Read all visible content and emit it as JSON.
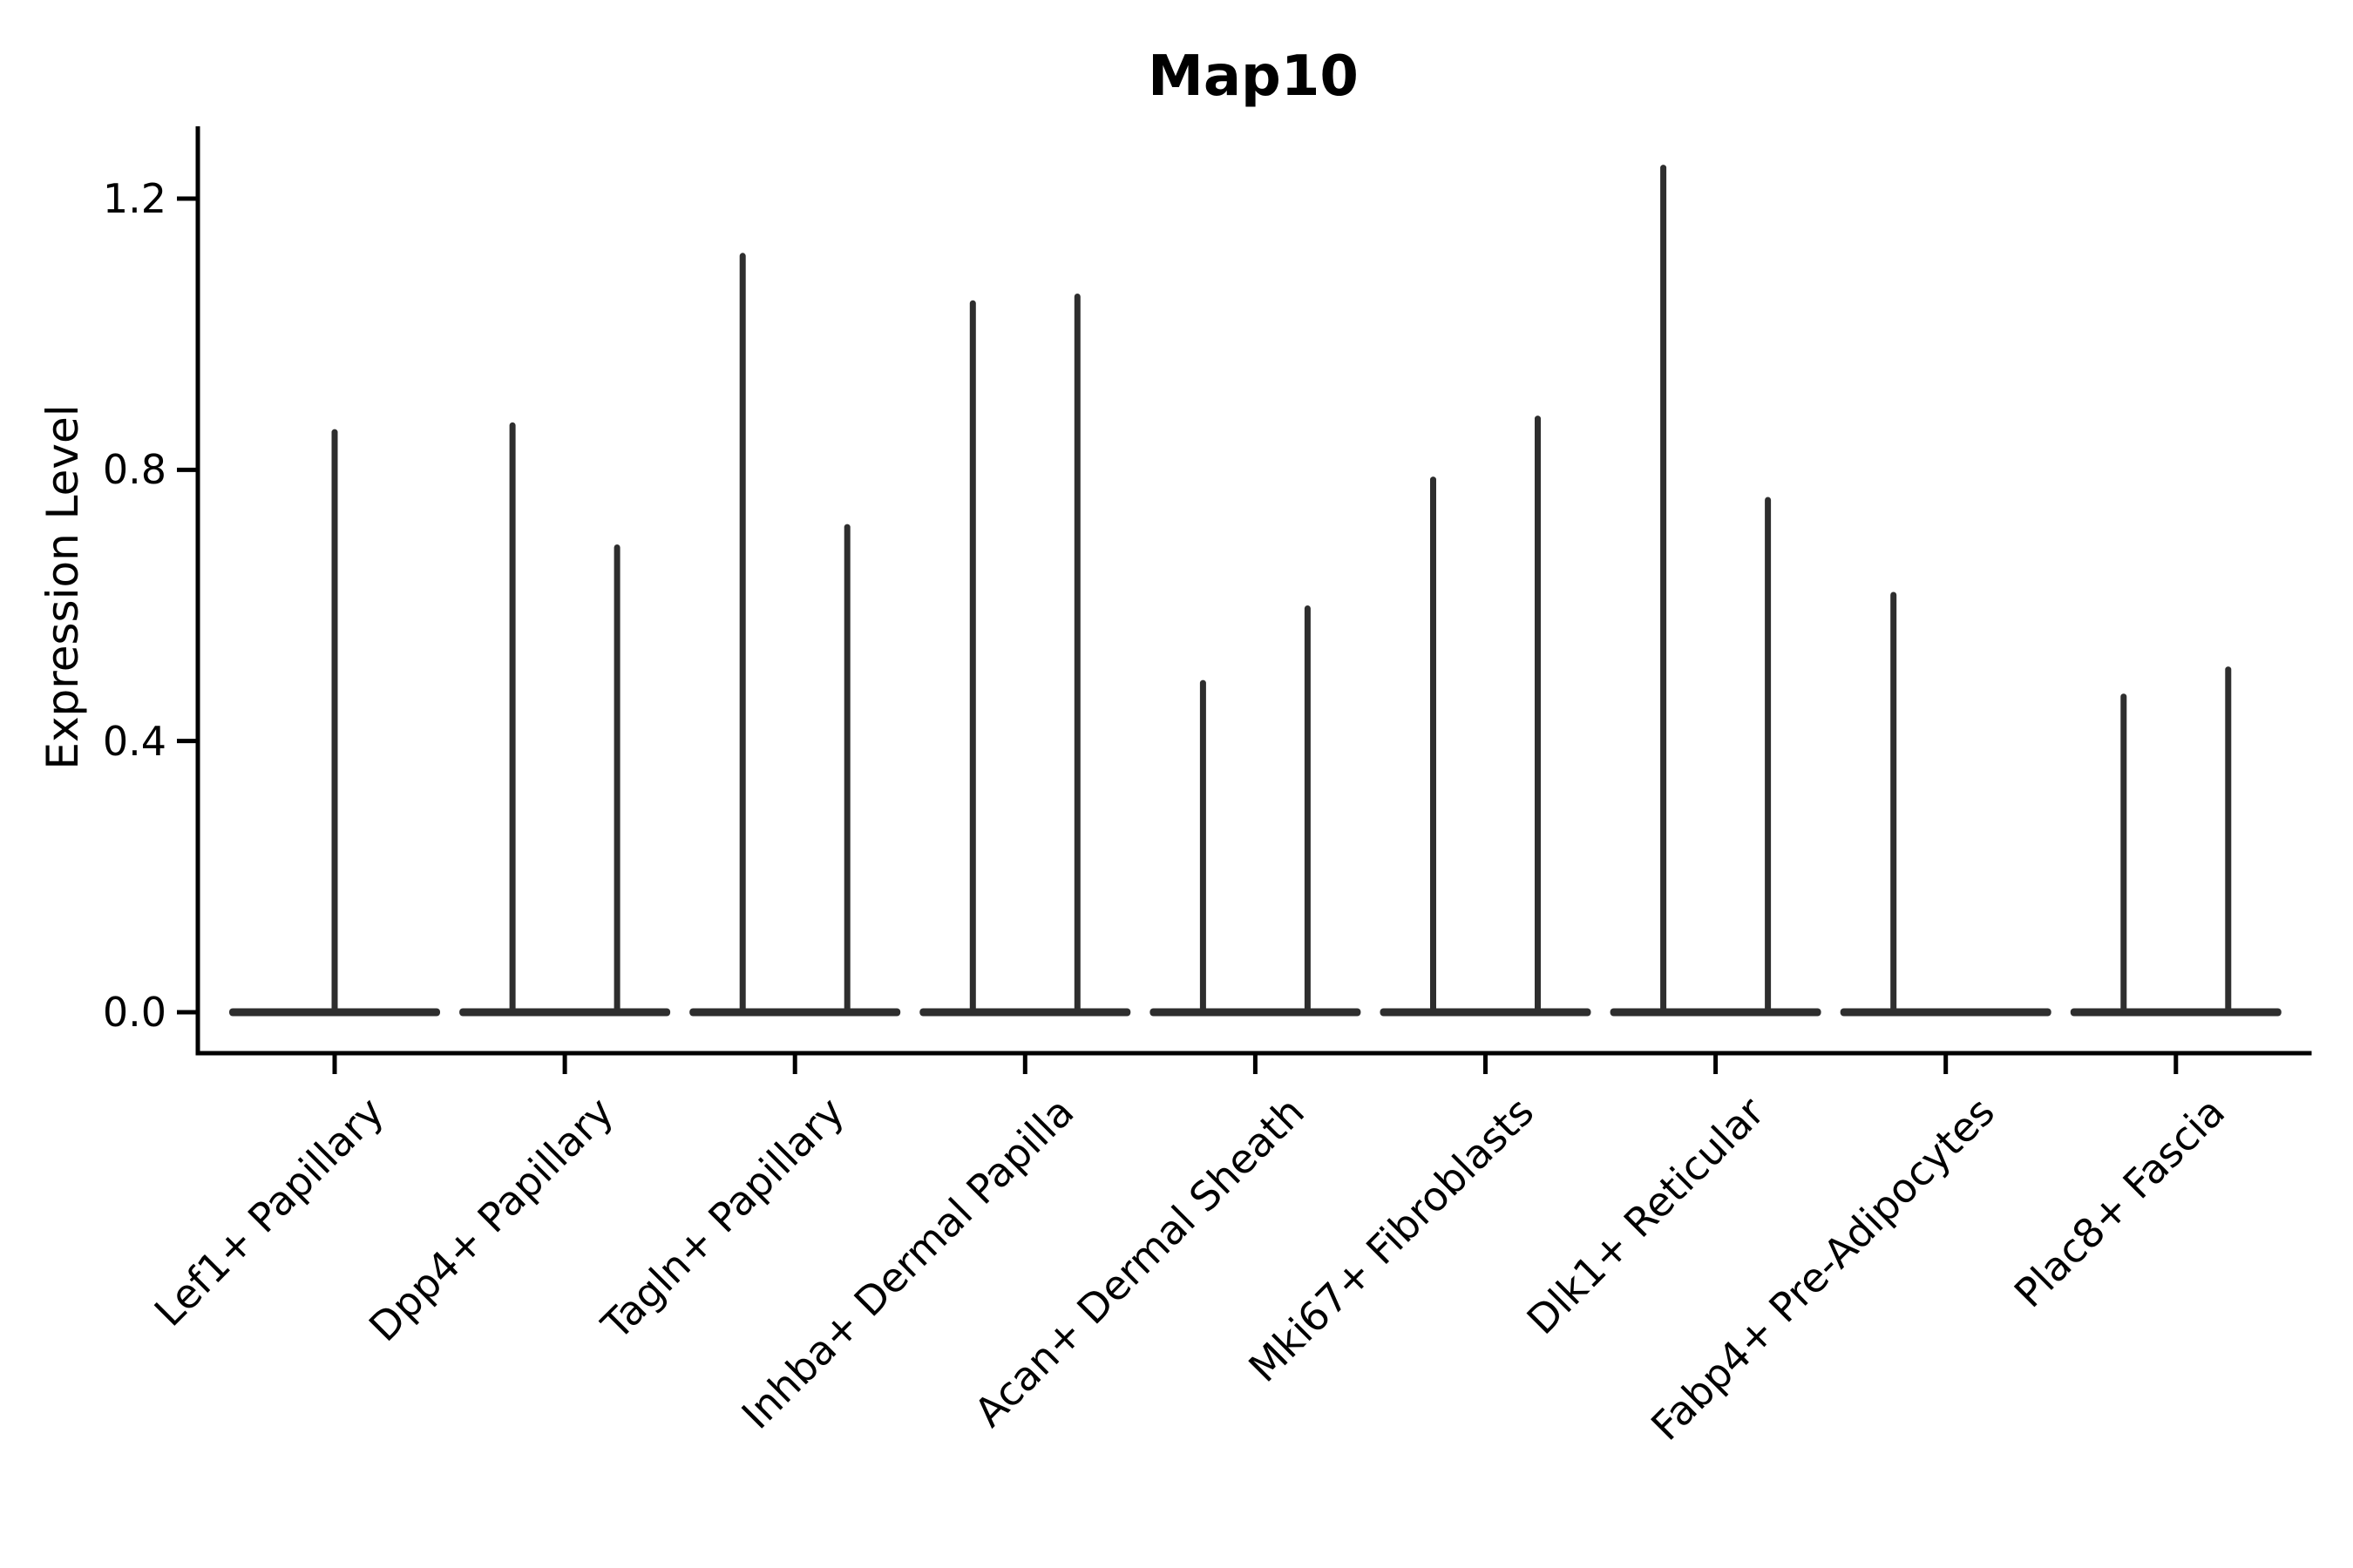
{
  "chart_data": {
    "type": "violin",
    "title": "Map10",
    "xlabel": "",
    "ylabel": "Expression Level",
    "yticks": [
      "0.0",
      "0.4",
      "0.8",
      "1.2"
    ],
    "ylim": [
      -0.06,
      1.31
    ],
    "grid": false,
    "legend": "none",
    "description": "Violin plot of Map10 expression per fibroblast cluster; each violin is a flat base at 0 with a thin spike to its maximum expression. Most categories contain two side-by-side violins (left/right); Lef1+ Papillary has a single centered violin; Fabp4+ Pre-Adipocytes shows a spike only in the left violin.",
    "categories": [
      {
        "label": "Lef1+ Papillary",
        "spikes": [
          {
            "slot": "center",
            "max": 0.86
          }
        ]
      },
      {
        "label": "Dpp4+ Papillary",
        "spikes": [
          {
            "slot": "left",
            "max": 0.87
          },
          {
            "slot": "right",
            "max": 0.69
          }
        ]
      },
      {
        "label": "Tagln+ Papillary",
        "spikes": [
          {
            "slot": "left",
            "max": 1.12
          },
          {
            "slot": "right",
            "max": 0.72
          }
        ]
      },
      {
        "label": "Inhba+ Dermal Papilla",
        "spikes": [
          {
            "slot": "left",
            "max": 1.05
          },
          {
            "slot": "right",
            "max": 1.06
          }
        ]
      },
      {
        "label": "Acan+ Dermal Sheath",
        "spikes": [
          {
            "slot": "left",
            "max": 0.49
          },
          {
            "slot": "right",
            "max": 0.6
          }
        ]
      },
      {
        "label": "Mki67+ Fibroblasts",
        "spikes": [
          {
            "slot": "left",
            "max": 0.79
          },
          {
            "slot": "right",
            "max": 0.88
          }
        ]
      },
      {
        "label": "Dlk1+ Reticular",
        "spikes": [
          {
            "slot": "left",
            "max": 1.25
          },
          {
            "slot": "right",
            "max": 0.76
          }
        ]
      },
      {
        "label": "Fabp4+ Pre-Adipocytes",
        "spikes": [
          {
            "slot": "left",
            "max": 0.62
          }
        ]
      },
      {
        "label": "Plac8+ Fascia",
        "spikes": [
          {
            "slot": "left",
            "max": 0.47
          },
          {
            "slot": "right",
            "max": 0.51
          }
        ]
      }
    ],
    "baseline_value": 0.0,
    "colors": {
      "violin": "#2e2e2e",
      "axis": "#000000",
      "text": "#000000",
      "background": "#ffffff"
    }
  }
}
